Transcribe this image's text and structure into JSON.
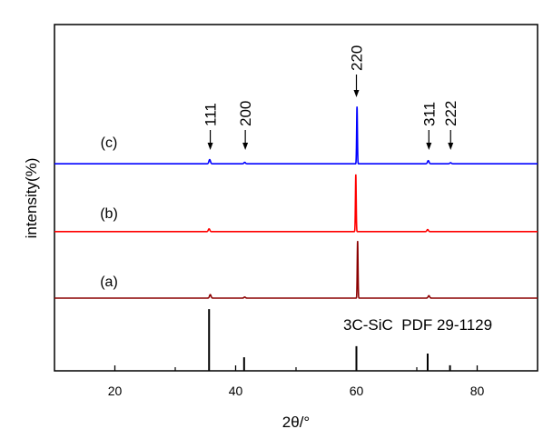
{
  "chart_data": {
    "type": "line",
    "title": "",
    "xlabel": "2θ/°",
    "ylabel": "intensity(%)",
    "xlim": [
      10,
      90
    ],
    "ylim": [
      0,
      100
    ],
    "xticks": [
      20,
      40,
      60,
      80
    ],
    "xminor": [
      30,
      50,
      70
    ],
    "yticks": [],
    "grid": false,
    "series": [
      {
        "name": "(c)",
        "color": "#0000ff",
        "offset": 59.8,
        "peaks": [
          [
            35.7,
            1.2
          ],
          [
            41.5,
            0.4
          ],
          [
            60.1,
            16.5
          ],
          [
            71.9,
            0.9
          ],
          [
            75.6,
            0.3
          ]
        ]
      },
      {
        "name": "(b)",
        "color": "#ff0000",
        "offset": 40.2,
        "peaks": [
          [
            35.6,
            0.8
          ],
          [
            59.9,
            16.5
          ],
          [
            71.8,
            0.6
          ]
        ]
      },
      {
        "name": "(a)",
        "color": "#8b0000",
        "offset": 21.0,
        "peaks": [
          [
            35.8,
            1.0
          ],
          [
            41.5,
            0.3
          ],
          [
            60.2,
            16.5
          ],
          [
            72.0,
            0.7
          ]
        ]
      }
    ],
    "reference": {
      "label": "3C-SiC  PDF 29-1129",
      "color": "#000000",
      "sticks": [
        [
          35.6,
          100
        ],
        [
          41.4,
          22
        ],
        [
          60.0,
          40
        ],
        [
          71.8,
          28
        ],
        [
          75.5,
          9
        ]
      ]
    },
    "annotations": [
      {
        "text": "111",
        "x": 35.8
      },
      {
        "text": "200",
        "x": 41.6
      },
      {
        "text": "220",
        "x": 60.0
      },
      {
        "text": "311",
        "x": 72.0
      },
      {
        "text": "222",
        "x": 75.6
      }
    ]
  }
}
